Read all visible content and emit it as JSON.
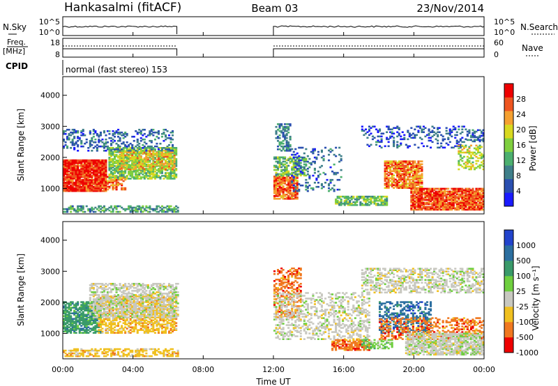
{
  "header": {
    "station": "Hankasalmi (fitACF)",
    "beam": "Beam 03",
    "date": "23/Nov/2014"
  },
  "noise_panel": {
    "left_label": "N.Sky",
    "right_label": "N.Search",
    "left_ticks": [
      "10^5",
      "10^0"
    ],
    "right_ticks": [
      "10^5",
      "10^0"
    ],
    "segments_ut_hours": [
      [
        0.0,
        6.5
      ],
      [
        12.0,
        24.0
      ]
    ]
  },
  "freq_panel": {
    "left_label_line1": "Freq.",
    "left_label_line2": "[MHz]",
    "right_label": "Nave",
    "left_ticks": [
      "18",
      "8"
    ],
    "right_ticks": [
      "60",
      "0"
    ],
    "segments_ut_hours": [
      [
        0.0,
        6.5
      ],
      [
        12.0,
        24.0
      ]
    ]
  },
  "cpid": {
    "label": "CPID",
    "mode": "normal (fast stereo) 153"
  },
  "x_axis": {
    "label": "Time UT",
    "range_hours": [
      0,
      24
    ],
    "ticks": [
      {
        "v": 0,
        "label": "00:00"
      },
      {
        "v": 4,
        "label": "04:00"
      },
      {
        "v": 8,
        "label": "08:00"
      },
      {
        "v": 12,
        "label": "12:00"
      },
      {
        "v": 16,
        "label": "16:00"
      },
      {
        "v": 20,
        "label": "20:00"
      },
      {
        "v": 24,
        "label": "00:00"
      }
    ]
  },
  "chart_data": [
    {
      "type": "heatmap",
      "name": "power",
      "ylabel": "Slant Range [km]",
      "ylim": [
        180,
        4600
      ],
      "y_ticks": [
        1000,
        2000,
        3000,
        4000
      ],
      "colorbar": {
        "label": "Power [dB]",
        "range": [
          0,
          32
        ],
        "tick_values": [
          4,
          8,
          12,
          16,
          20,
          24,
          28
        ],
        "tick_labels": [
          "4",
          "8",
          "12",
          "16",
          "20",
          "24",
          "28"
        ],
        "stops": [
          "#1a1aff",
          "#2a4fb0",
          "#3f7f8a",
          "#4caf6f",
          "#7fcf3f",
          "#d8d820",
          "#f5a030",
          "#ee5520",
          "#ee0000"
        ]
      },
      "regions": [
        {
          "t": [
            0.0,
            2.5
          ],
          "r": [
            900,
            1900
          ],
          "value": 29,
          "density": 0.95
        },
        {
          "t": [
            2.5,
            3.6
          ],
          "r": [
            950,
            1400
          ],
          "value": 25,
          "density": 0.7
        },
        {
          "t": [
            2.6,
            6.4
          ],
          "r": [
            1300,
            2300
          ],
          "value": 15,
          "density": 0.75
        },
        {
          "t": [
            3.2,
            6.3
          ],
          "r": [
            1600,
            2200
          ],
          "value": 21,
          "density": 0.5
        },
        {
          "t": [
            0.0,
            6.2
          ],
          "r": [
            2200,
            2900
          ],
          "value": 7,
          "density": 0.28
        },
        {
          "t": [
            0.0,
            6.5
          ],
          "r": [
            230,
            450
          ],
          "value": 11,
          "density": 0.5
        },
        {
          "t": [
            12.0,
            13.3
          ],
          "r": [
            650,
            1400
          ],
          "value": 26,
          "density": 0.85
        },
        {
          "t": [
            12.0,
            13.8
          ],
          "r": [
            1400,
            2000
          ],
          "value": 14,
          "density": 0.6
        },
        {
          "t": [
            12.1,
            12.9
          ],
          "r": [
            2200,
            3100
          ],
          "value": 9,
          "density": 0.45
        },
        {
          "t": [
            13.0,
            15.8
          ],
          "r": [
            900,
            2300
          ],
          "value": 7,
          "density": 0.2
        },
        {
          "t": [
            15.5,
            18.5
          ],
          "r": [
            450,
            750
          ],
          "value": 14,
          "density": 0.7
        },
        {
          "t": [
            17.0,
            23.0
          ],
          "r": [
            2300,
            3000
          ],
          "value": 6,
          "density": 0.22
        },
        {
          "t": [
            18.3,
            20.5
          ],
          "r": [
            1000,
            1900
          ],
          "value": 25,
          "density": 0.8
        },
        {
          "t": [
            19.8,
            24.0
          ],
          "r": [
            300,
            1000
          ],
          "value": 27,
          "density": 0.9
        },
        {
          "t": [
            22.5,
            24.0
          ],
          "r": [
            1600,
            2400
          ],
          "value": 18,
          "density": 0.4
        },
        {
          "t": [
            23.0,
            24.0
          ],
          "r": [
            2500,
            2900
          ],
          "value": 7,
          "density": 0.5
        }
      ]
    },
    {
      "type": "heatmap",
      "name": "velocity",
      "ylabel": "Slant Range [km]",
      "ylim": [
        180,
        4600
      ],
      "y_ticks": [
        1000,
        2000,
        3000,
        4000
      ],
      "colorbar": {
        "label": "Velocity [m s⁻¹]",
        "tick_labels": [
          "1000",
          "500",
          "100",
          "25",
          "-25",
          "-100",
          "-500",
          "-1000"
        ],
        "stops": [
          "#2244cc",
          "#2c6fa0",
          "#3a9a6a",
          "#6fcf3f",
          "#c8c8c0",
          "#f0c020",
          "#f07820",
          "#ee0000"
        ]
      },
      "regions": [
        {
          "t": [
            0.0,
            2.2
          ],
          "r": [
            1000,
            2000
          ],
          "class": 2,
          "density": 0.75
        },
        {
          "t": [
            2.0,
            6.4
          ],
          "r": [
            1000,
            2200
          ],
          "class": 5,
          "density": 0.6
        },
        {
          "t": [
            1.5,
            6.5
          ],
          "r": [
            1500,
            2600
          ],
          "class": 4,
          "density": 0.55
        },
        {
          "t": [
            0.0,
            6.5
          ],
          "r": [
            250,
            500
          ],
          "class": 5,
          "density": 0.5
        },
        {
          "t": [
            12.0,
            13.5
          ],
          "r": [
            1500,
            3100
          ],
          "class": 6,
          "density": 0.45
        },
        {
          "t": [
            12.0,
            17.5
          ],
          "r": [
            800,
            2300
          ],
          "class": 4,
          "density": 0.35
        },
        {
          "t": [
            15.3,
            17.5
          ],
          "r": [
            450,
            800
          ],
          "class": 6,
          "density": 0.7
        },
        {
          "t": [
            17.0,
            18.8
          ],
          "r": [
            500,
            800
          ],
          "class": 3,
          "density": 0.5
        },
        {
          "t": [
            18.0,
            21.0
          ],
          "r": [
            1000,
            2000
          ],
          "class": 1,
          "density": 0.45
        },
        {
          "t": [
            18.0,
            24.0
          ],
          "r": [
            800,
            1500
          ],
          "class": 6,
          "density": 0.4
        },
        {
          "t": [
            17.0,
            24.0
          ],
          "r": [
            2300,
            3100
          ],
          "class": 4,
          "density": 0.45
        },
        {
          "t": [
            19.5,
            24.0
          ],
          "r": [
            300,
            1000
          ],
          "class": 4,
          "density": 0.75
        }
      ]
    }
  ]
}
